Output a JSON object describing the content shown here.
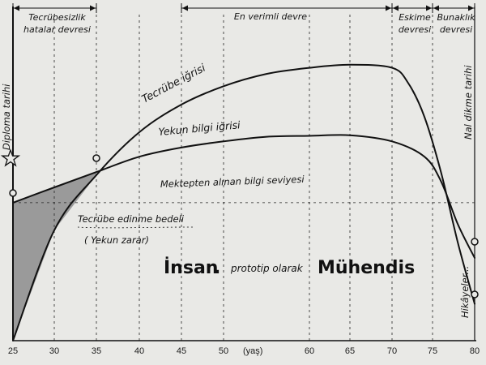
{
  "chart_data": {
    "type": "line",
    "title": "",
    "xlabel": "(yaş)",
    "ylabel": "",
    "xlim": [
      25,
      80
    ],
    "ylim": [
      0,
      100
    ],
    "x_ticks": [
      "25",
      "30",
      "35",
      "40",
      "45",
      "50",
      "60",
      "65",
      "70",
      "75",
      "80"
    ],
    "x_tick_values": [
      25,
      30,
      35,
      40,
      45,
      50,
      60,
      65,
      70,
      75,
      80
    ],
    "grid": "vertical-dashed",
    "series": [
      {
        "name": "Tecrübe iğrisi",
        "x": [
          25,
          30,
          35,
          40,
          45,
          50,
          55,
          60,
          65,
          70,
          72,
          74,
          76,
          78,
          80
        ],
        "y": [
          0,
          36,
          54,
          68,
          77,
          83,
          87,
          89,
          90,
          89,
          84,
          73,
          55,
          32,
          12
        ]
      },
      {
        "name": "Yekun bilgi iğrisi",
        "x": [
          25,
          30,
          35,
          40,
          45,
          50,
          55,
          60,
          65,
          70,
          74,
          76,
          78,
          80
        ],
        "y": [
          45,
          50,
          55,
          60,
          63,
          65,
          66.5,
          66.8,
          67,
          65,
          60,
          52,
          38,
          27
        ]
      }
    ],
    "reference_line": {
      "label": "Mektepten alınan bilgi seviyesi",
      "y": 45
    },
    "periods": [
      {
        "label_1": "Tecrübesizlik",
        "label_2": "hatalar devresi",
        "x_start": 25,
        "x_end": 35
      },
      {
        "label_1": "En verimli devre",
        "label_2": "",
        "x_start": 45,
        "x_end": 70
      },
      {
        "label_1": "Eskime",
        "label_2": "devresi",
        "x_start": 70,
        "x_end": 75
      },
      {
        "label_1": "Bunaklık",
        "label_2": "devresi",
        "x_start": 75,
        "x_end": 80
      }
    ],
    "annotations": {
      "diploma": "Diploma tarihi",
      "nal": "Nal dikme tarihi",
      "hikoyeler": "Hikâyeler...",
      "bedel_1": "Tecrübe edinme bedeli",
      "bedel_2": "( Yekun zarar)",
      "insan": "İnsan",
      "prototip": "prototip olarak",
      "muhendis": "Mühendis"
    },
    "colors": {
      "background": "#e9e9e6",
      "ink": "#111111",
      "shaded_area": "#9a9a9a"
    }
  }
}
